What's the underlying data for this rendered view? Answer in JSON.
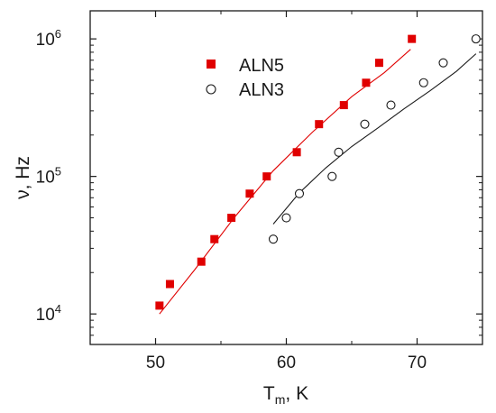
{
  "chart_data": {
    "type": "scatter",
    "xlabel": "T",
    "xlabel_sub": "m",
    "xlabel_suffix": ", K",
    "ylabel": "ν, Hz",
    "xlim": [
      45,
      75
    ],
    "ylim": [
      6000,
      1600000
    ],
    "yscale": "log",
    "x_ticks": [
      50,
      60,
      70
    ],
    "y_ticks": [
      {
        "value": 10000,
        "base": "10",
        "exp": "4"
      },
      {
        "value": 100000,
        "base": "10",
        "exp": "5"
      },
      {
        "value": 1000000,
        "base": "10",
        "exp": "6"
      }
    ],
    "grid": false,
    "legend_position": "top-center",
    "series": [
      {
        "name": "ALN5",
        "marker": "filled-square",
        "color": "#e00000",
        "points": [
          {
            "x": 50.3,
            "y": 11500
          },
          {
            "x": 51.1,
            "y": 16500
          },
          {
            "x": 53.5,
            "y": 24000
          },
          {
            "x": 54.5,
            "y": 35000
          },
          {
            "x": 55.8,
            "y": 50000
          },
          {
            "x": 57.2,
            "y": 75000
          },
          {
            "x": 58.5,
            "y": 100000
          },
          {
            "x": 60.8,
            "y": 150000
          },
          {
            "x": 62.5,
            "y": 240000
          },
          {
            "x": 64.4,
            "y": 330000
          },
          {
            "x": 66.1,
            "y": 480000
          },
          {
            "x": 67.1,
            "y": 670000
          },
          {
            "x": 69.6,
            "y": 1000000
          }
        ],
        "fit": [
          {
            "x": 50.3,
            "y": 10000
          },
          {
            "x": 53.0,
            "y": 21000
          },
          {
            "x": 56.0,
            "y": 50000
          },
          {
            "x": 59.0,
            "y": 110000
          },
          {
            "x": 62.0,
            "y": 210000
          },
          {
            "x": 65.0,
            "y": 380000
          },
          {
            "x": 67.5,
            "y": 570000
          },
          {
            "x": 69.5,
            "y": 840000
          }
        ]
      },
      {
        "name": "ALN3",
        "marker": "open-circle",
        "color": "#1a1a1a",
        "points": [
          {
            "x": 59.0,
            "y": 35000
          },
          {
            "x": 60.0,
            "y": 50000
          },
          {
            "x": 61.0,
            "y": 75000
          },
          {
            "x": 63.5,
            "y": 100000
          },
          {
            "x": 64.0,
            "y": 150000
          },
          {
            "x": 66.0,
            "y": 240000
          },
          {
            "x": 68.0,
            "y": 330000
          },
          {
            "x": 70.5,
            "y": 480000
          },
          {
            "x": 72.0,
            "y": 670000
          },
          {
            "x": 74.5,
            "y": 1000000
          }
        ],
        "fit": [
          {
            "x": 59.0,
            "y": 45000
          },
          {
            "x": 61.0,
            "y": 76000
          },
          {
            "x": 63.0,
            "y": 115000
          },
          {
            "x": 65.0,
            "y": 165000
          },
          {
            "x": 67.0,
            "y": 225000
          },
          {
            "x": 69.0,
            "y": 310000
          },
          {
            "x": 71.0,
            "y": 420000
          },
          {
            "x": 73.0,
            "y": 580000
          },
          {
            "x": 74.5,
            "y": 780000
          }
        ]
      }
    ]
  }
}
